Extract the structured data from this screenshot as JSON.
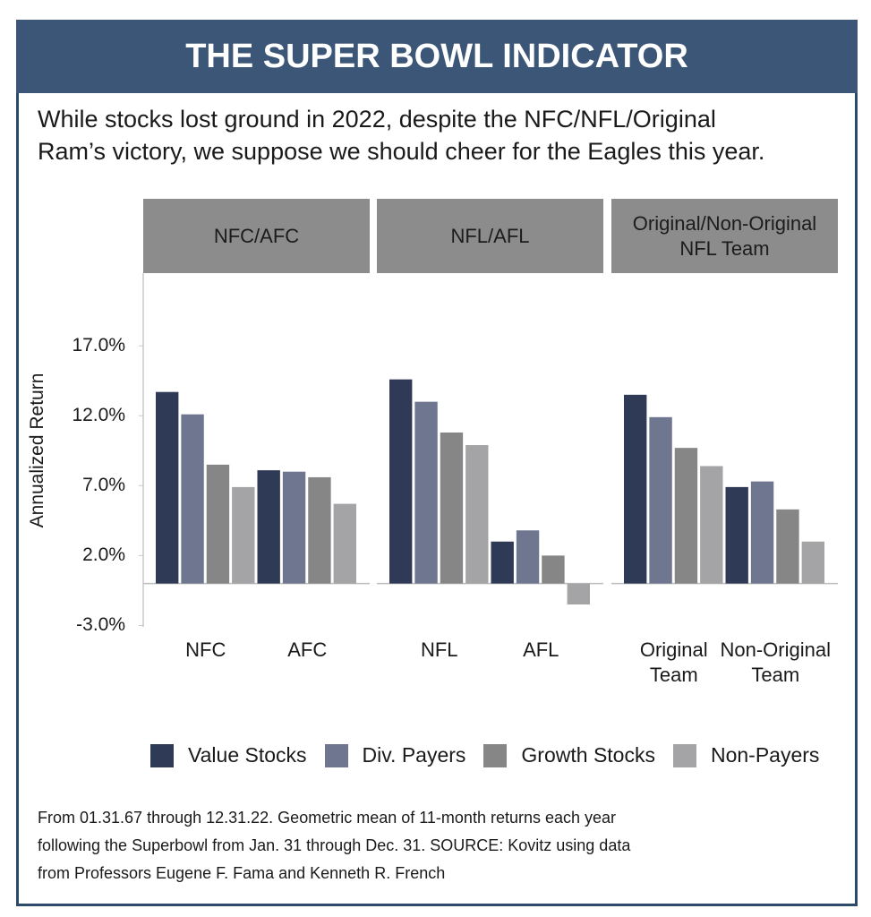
{
  "chart_data": {
    "type": "bar",
    "title": "THE SUPER BOWL INDICATOR",
    "subtitle": "While stocks lost ground in 2022, despite the NFC/NFL/Original\nRam’s victory, we suppose we should cheer for the Eagles this year.",
    "ylabel": "Annualized Return",
    "ylim": [
      -3.1,
      22.2
    ],
    "yticks": [
      {
        "value": -3,
        "label": "-3.0%"
      },
      {
        "value": 2,
        "label": "2.0%"
      },
      {
        "value": 7,
        "label": "7.0%"
      },
      {
        "value": 12,
        "label": "12.0%"
      },
      {
        "value": 17,
        "label": "17.0%"
      }
    ],
    "facets": [
      {
        "title": "NFC/AFC",
        "categories": [
          "NFC",
          "AFC"
        ]
      },
      {
        "title": "NFL/AFL",
        "categories": [
          "NFL",
          "AFL"
        ]
      },
      {
        "title": "Original/Non-Original\nNFL Team",
        "categories": [
          "Original\nTeam",
          "Non-Original\nTeam"
        ]
      }
    ],
    "series": [
      {
        "name": "Value Stocks",
        "color": "#2f3a56",
        "values": [
          13.7,
          8.1,
          14.6,
          3.0,
          13.5,
          6.9
        ]
      },
      {
        "name": "Div. Payers",
        "color": "#6e7690",
        "values": [
          12.1,
          8.0,
          13.0,
          3.8,
          11.9,
          7.3
        ]
      },
      {
        "name": "Growth Stocks",
        "color": "#868686",
        "values": [
          8.5,
          7.6,
          10.8,
          2.0,
          9.7,
          5.3
        ]
      },
      {
        "name": "Non-Payers",
        "color": "#a4a4a6",
        "values": [
          6.9,
          5.7,
          9.9,
          -1.5,
          8.4,
          3.0
        ]
      }
    ],
    "note": "From 01.31.67 through 12.31.22. Geometric mean of 11-month returns each year\nfollowing the Superbowl from Jan. 31 through Dec. 31.  SOURCE: Kovitz using data\nfrom Professors Eugene F. Fama and Kenneth R. French"
  }
}
